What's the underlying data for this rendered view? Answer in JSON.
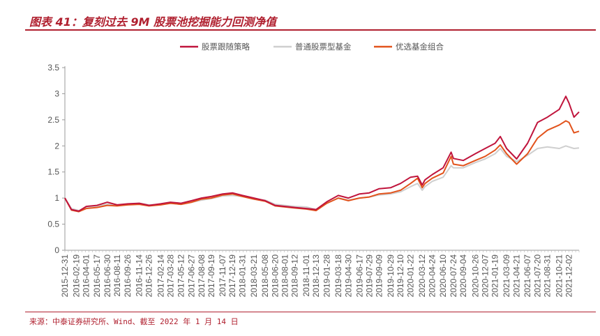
{
  "header": {
    "title": "图表 41：复刻过去 9M 股票池挖掘能力回测净值"
  },
  "footer": {
    "source": "来源：中泰证券研究所、Wind、截至 2022 年 1 月 14 日"
  },
  "colors": {
    "accent": "#b0202f",
    "series": [
      "#c0143c",
      "#cfcfcf",
      "#e2531c"
    ]
  },
  "chart_data": {
    "type": "line",
    "title": "",
    "xlabel": "",
    "ylabel": "",
    "ylim": [
      0,
      3.5
    ],
    "yticks": [
      0,
      0.5,
      1,
      1.5,
      2,
      2.5,
      3,
      3.5
    ],
    "grid": false,
    "legend_position": "top-center",
    "x_tick_labels": [
      "2015-12-31",
      "2016-02-19",
      "2016-04-01",
      "2016-05-17",
      "2016-06-30",
      "2016-08-11",
      "2016-09-26",
      "2016-11-14",
      "2016-12-26",
      "2017-02-14",
      "2017-03-28",
      "2017-05-12",
      "2017-06-27",
      "2017-08-08",
      "2017-09-19",
      "2017-11-07",
      "2017-12-19",
      "2018-01-31",
      "2018-03-21",
      "2018-05-08",
      "2018-06-20",
      "2018-08-01",
      "2018-09-12",
      "2018-11-01",
      "2018-12-13",
      "2019-01-28",
      "2019-03-18",
      "2019-04-30",
      "2019-06-17",
      "2019-07-29",
      "2019-09-09",
      "2019-10-29",
      "2019-12-10",
      "2020-01-22",
      "2020-03-12",
      "2020-04-24",
      "2020-06-10",
      "2020-07-24",
      "2020-09-04",
      "2020-10-26",
      "2020-12-07",
      "2021-01-19",
      "2021-03-09",
      "2021-04-21",
      "2021-06-07",
      "2021-07-20",
      "2021-08-31",
      "2021-10-21",
      "2021-12-02"
    ],
    "series": [
      {
        "name": "股票跟随策略",
        "color": "#c0143c",
        "x": [
          "2015-12-31",
          "2016-01-28",
          "2016-02-29",
          "2016-04-01",
          "2016-05-17",
          "2016-06-30",
          "2016-08-11",
          "2016-09-26",
          "2016-11-14",
          "2016-12-26",
          "2017-02-14",
          "2017-03-28",
          "2017-05-12",
          "2017-06-27",
          "2017-08-08",
          "2017-09-19",
          "2017-11-07",
          "2017-12-19",
          "2018-01-31",
          "2018-03-21",
          "2018-05-08",
          "2018-06-20",
          "2018-08-01",
          "2018-09-12",
          "2018-11-01",
          "2018-12-13",
          "2019-01-28",
          "2019-03-18",
          "2019-04-30",
          "2019-06-17",
          "2019-07-29",
          "2019-09-09",
          "2019-10-29",
          "2019-12-10",
          "2020-01-22",
          "2020-02-21",
          "2020-03-12",
          "2020-03-24",
          "2020-04-24",
          "2020-06-10",
          "2020-07-14",
          "2020-07-24",
          "2020-09-04",
          "2020-10-26",
          "2020-12-07",
          "2021-01-19",
          "2021-02-10",
          "2021-03-09",
          "2021-04-21",
          "2021-06-07",
          "2021-07-20",
          "2021-08-31",
          "2021-10-21",
          "2021-11-18",
          "2021-12-02",
          "2021-12-23",
          "2022-01-14"
        ],
        "values": [
          1.0,
          0.78,
          0.75,
          0.84,
          0.86,
          0.92,
          0.87,
          0.89,
          0.9,
          0.86,
          0.89,
          0.92,
          0.9,
          0.95,
          1.0,
          1.03,
          1.08,
          1.1,
          1.05,
          1.0,
          0.95,
          0.86,
          0.84,
          0.82,
          0.8,
          0.78,
          0.93,
          1.05,
          1.0,
          1.08,
          1.1,
          1.18,
          1.2,
          1.28,
          1.4,
          1.42,
          1.25,
          1.35,
          1.45,
          1.58,
          1.88,
          1.76,
          1.72,
          1.85,
          1.95,
          2.05,
          2.18,
          1.95,
          1.75,
          2.05,
          2.45,
          2.55,
          2.7,
          2.95,
          2.82,
          2.55,
          2.65
        ]
      },
      {
        "name": "普通股票型基金",
        "color": "#cfcfcf",
        "x": [
          "2015-12-31",
          "2016-01-28",
          "2016-02-29",
          "2016-04-01",
          "2016-05-17",
          "2016-06-30",
          "2016-08-11",
          "2016-09-26",
          "2016-11-14",
          "2016-12-26",
          "2017-02-14",
          "2017-03-28",
          "2017-05-12",
          "2017-06-27",
          "2017-08-08",
          "2017-09-19",
          "2017-11-07",
          "2017-12-19",
          "2018-01-31",
          "2018-03-21",
          "2018-05-08",
          "2018-06-20",
          "2018-08-01",
          "2018-09-12",
          "2018-11-01",
          "2018-12-13",
          "2019-01-28",
          "2019-03-18",
          "2019-04-30",
          "2019-06-17",
          "2019-07-29",
          "2019-09-09",
          "2019-10-29",
          "2019-12-10",
          "2020-01-22",
          "2020-02-21",
          "2020-03-12",
          "2020-03-24",
          "2020-04-24",
          "2020-06-10",
          "2020-07-14",
          "2020-07-24",
          "2020-09-04",
          "2020-10-26",
          "2020-12-07",
          "2021-01-19",
          "2021-02-10",
          "2021-03-09",
          "2021-04-21",
          "2021-06-07",
          "2021-07-20",
          "2021-08-31",
          "2021-10-21",
          "2021-11-18",
          "2021-12-02",
          "2021-12-23",
          "2022-01-14"
        ],
        "values": [
          1.0,
          0.8,
          0.76,
          0.83,
          0.85,
          0.88,
          0.86,
          0.88,
          0.9,
          0.87,
          0.88,
          0.9,
          0.88,
          0.92,
          0.96,
          0.99,
          1.04,
          1.05,
          1.03,
          0.98,
          0.96,
          0.88,
          0.86,
          0.84,
          0.83,
          0.78,
          0.9,
          1.0,
          0.96,
          1.0,
          1.02,
          1.06,
          1.08,
          1.12,
          1.22,
          1.28,
          1.15,
          1.22,
          1.32,
          1.4,
          1.62,
          1.58,
          1.58,
          1.68,
          1.75,
          1.85,
          1.95,
          1.8,
          1.7,
          1.82,
          1.95,
          1.98,
          1.95,
          2.0,
          1.98,
          1.95,
          1.96
        ]
      },
      {
        "name": "优选基金组合",
        "color": "#e2531c",
        "x": [
          "2015-12-31",
          "2016-01-28",
          "2016-02-29",
          "2016-04-01",
          "2016-05-17",
          "2016-06-30",
          "2016-08-11",
          "2016-09-26",
          "2016-11-14",
          "2016-12-26",
          "2017-02-14",
          "2017-03-28",
          "2017-05-12",
          "2017-06-27",
          "2017-08-08",
          "2017-09-19",
          "2017-11-07",
          "2017-12-19",
          "2018-01-31",
          "2018-03-21",
          "2018-05-08",
          "2018-06-20",
          "2018-08-01",
          "2018-09-12",
          "2018-11-01",
          "2018-12-13",
          "2019-01-28",
          "2019-03-18",
          "2019-04-30",
          "2019-06-17",
          "2019-07-29",
          "2019-09-09",
          "2019-10-29",
          "2019-12-10",
          "2020-01-22",
          "2020-02-21",
          "2020-03-12",
          "2020-03-24",
          "2020-04-24",
          "2020-06-10",
          "2020-07-14",
          "2020-07-24",
          "2020-09-04",
          "2020-10-26",
          "2020-12-07",
          "2021-01-19",
          "2021-02-10",
          "2021-03-09",
          "2021-04-21",
          "2021-06-07",
          "2021-07-20",
          "2021-08-31",
          "2021-10-21",
          "2021-11-18",
          "2021-12-02",
          "2021-12-23",
          "2022-01-14"
        ],
        "values": [
          1.0,
          0.77,
          0.74,
          0.8,
          0.82,
          0.86,
          0.85,
          0.87,
          0.88,
          0.85,
          0.87,
          0.9,
          0.88,
          0.92,
          0.98,
          1.0,
          1.06,
          1.08,
          1.03,
          0.98,
          0.94,
          0.85,
          0.83,
          0.81,
          0.79,
          0.76,
          0.9,
          1.0,
          0.95,
          1.0,
          1.02,
          1.08,
          1.1,
          1.15,
          1.28,
          1.38,
          1.2,
          1.28,
          1.38,
          1.48,
          1.8,
          1.65,
          1.62,
          1.72,
          1.8,
          1.92,
          2.02,
          1.85,
          1.65,
          1.85,
          2.15,
          2.3,
          2.4,
          2.48,
          2.45,
          2.25,
          2.28
        ]
      }
    ]
  }
}
